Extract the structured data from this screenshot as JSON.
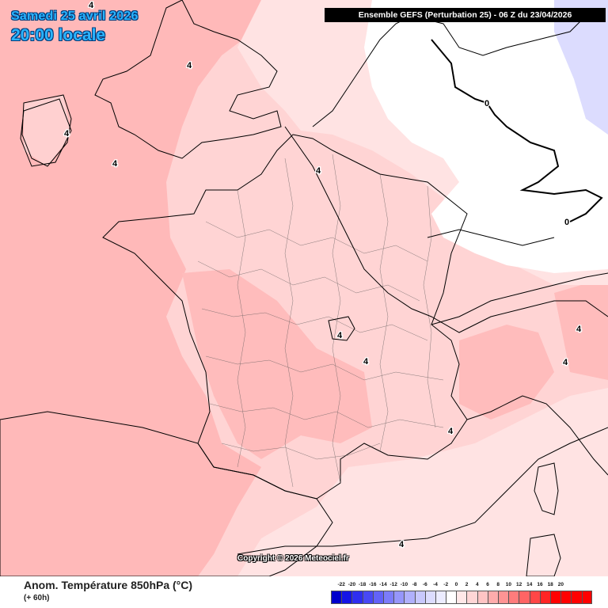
{
  "header": {
    "date": "Samedi 25 avril 2026",
    "time": "20:00 locale",
    "model": "Ensemble GEFS  (Perturbation 25)  -  06 Z du 23/04/2026"
  },
  "footer": {
    "title": "Anom. Température 850hPa (°C)",
    "lead_time": "(+ 60h)",
    "copyright": "Copyright © 2026 Meteociel.fr"
  },
  "legend": {
    "labels": [
      "-22",
      "-20",
      "-18",
      "-16",
      "-14",
      "-12",
      "-10",
      "-8",
      "-6",
      "-4",
      "-2",
      "0",
      "2",
      "4",
      "6",
      "8",
      "10",
      "12",
      "14",
      "16",
      "18",
      "20"
    ],
    "colors": [
      "#0000cc",
      "#1414e6",
      "#2e2ef0",
      "#4848f5",
      "#6262f8",
      "#7c7cfa",
      "#9696fb",
      "#b0b0fc",
      "#c8c8fd",
      "#dcdcfe",
      "#ececff",
      "#ffffff",
      "#ffe8e8",
      "#ffd6d6",
      "#ffc4c4",
      "#ffacac",
      "#ff9494",
      "#ff7c7c",
      "#ff6464",
      "#ff4646",
      "#ff2424",
      "#ff0000"
    ]
  },
  "contours": {
    "four": "4",
    "zero": "0"
  }
}
